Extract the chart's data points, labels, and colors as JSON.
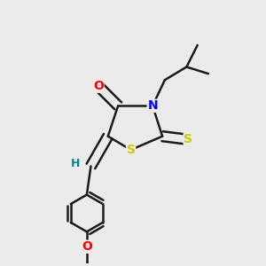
{
  "bg_color": "#ebebeb",
  "bond_color": "#1a1a1a",
  "bond_width": 1.8,
  "atom_colors": {
    "O": "#ff0000",
    "N": "#0000ff",
    "S": "#cccc00",
    "H": "#008b8b",
    "C": "#1a1a1a"
  },
  "font_size": 10,
  "font_size_H": 9,
  "dbo": 0.018
}
